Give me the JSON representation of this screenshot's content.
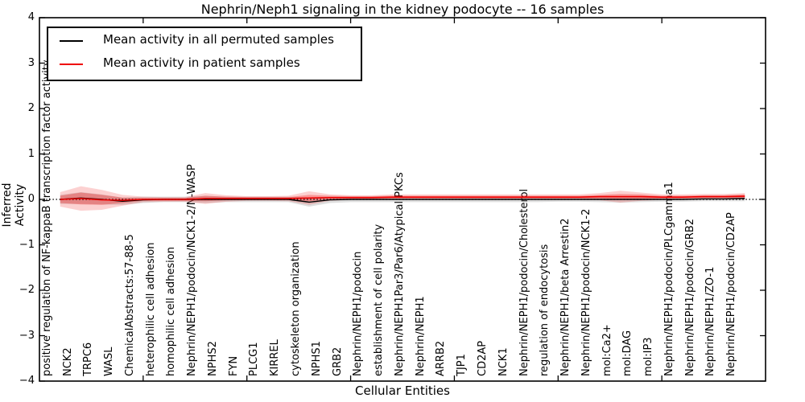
{
  "chart_data": {
    "type": "line",
    "title": "Nephrin/Neph1 signaling in the kidney podocyte -- 16 samples",
    "xlabel": "Cellular Entities",
    "ylabel": "Inferred Activity",
    "ylim": [
      -4,
      4
    ],
    "xlim": [
      0,
      35
    ],
    "grid": false,
    "legend_position": "upper-left",
    "ytick_labels": [
      "4",
      "3",
      "2",
      "1",
      "0",
      "−1",
      "−2",
      "−3",
      "−4"
    ],
    "ytick_values": [
      4,
      3,
      2,
      1,
      0,
      -1,
      -2,
      -3,
      -4
    ],
    "xtick_units": [
      5,
      10,
      15,
      20,
      25,
      30
    ],
    "zero_line": {
      "value": 0,
      "style": "dotted",
      "color": "#000000"
    },
    "categories": [
      "positive regulation of NF-kappaB transcription factor activity",
      "NCK2",
      "TRPC6",
      "WASL",
      "ChemicalAbstracts:57-88-5",
      "heterophilic cell adhesion",
      "homophilic cell adhesion",
      "Nephrin/NEPH1/podocin/NCK1-2/N-WASP",
      "NPHS2",
      "FYN",
      "PLCG1",
      "KIRREL",
      "cytoskeleton organization",
      "NPHS1",
      "GRB2",
      "Nephrin/NEPH1/podocin",
      "establishment of cell polarity",
      "Nephrin/NEPH1Par3/Par6/Atypical PKCs",
      "Nephrin/NEPH1",
      "ARRB2",
      "TJP1",
      "CD2AP",
      "NCK1",
      "Nephrin/NEPH1/podocin/Cholesterol",
      "regulation of endocytosis",
      "Nephrin/NEPH1/beta Arrestin2",
      "Nephrin/NEPH1/podocin/NCK1-2",
      "mol:Ca2+",
      "mol:DAG",
      "mol:IP3",
      "Nephrin/NEPH1/podocin/PLCgamma1",
      "Nephrin/NEPH1/podocin/GRB2",
      "Nephrin/NEPH1/ZO-1",
      "Nephrin/NEPH1/podocin/CD2AP"
    ],
    "series": [
      {
        "name": "Mean activity in all permuted samples",
        "color": "#000000",
        "band_color": "#999999",
        "values": [
          0.0,
          0.03,
          0.0,
          -0.04,
          -0.01,
          0.0,
          0.0,
          0.0,
          0.0,
          0.0,
          0.0,
          0.0,
          -0.06,
          -0.01,
          0.0,
          0.0,
          0.0,
          0.0,
          0.0,
          0.0,
          0.0,
          0.0,
          0.0,
          0.0,
          0.0,
          0.0,
          0.0,
          0.0,
          0.0,
          0.0,
          0.0,
          0.01,
          0.01,
          0.02
        ],
        "band_halfwidth": [
          0.1,
          0.13,
          0.11,
          0.08,
          0.07,
          0.06,
          0.06,
          0.08,
          0.06,
          0.06,
          0.06,
          0.06,
          0.1,
          0.07,
          0.06,
          0.06,
          0.06,
          0.06,
          0.06,
          0.06,
          0.06,
          0.06,
          0.06,
          0.06,
          0.05,
          0.05,
          0.06,
          0.07,
          0.06,
          0.05,
          0.05,
          0.05,
          0.05,
          0.06
        ]
      },
      {
        "name": "Mean activity in patient samples",
        "color": "#ee0000",
        "band_color": "#ee0000",
        "values": [
          0.0,
          0.02,
          -0.01,
          -0.02,
          0.0,
          0.0,
          0.0,
          0.02,
          0.02,
          0.02,
          0.02,
          0.02,
          0.03,
          0.04,
          0.04,
          0.04,
          0.05,
          0.05,
          0.05,
          0.05,
          0.05,
          0.05,
          0.05,
          0.05,
          0.05,
          0.05,
          0.06,
          0.06,
          0.06,
          0.05,
          0.05,
          0.06,
          0.06,
          0.07
        ],
        "band_halfwidth_outer": [
          0.16,
          0.27,
          0.22,
          0.12,
          0.06,
          0.05,
          0.05,
          0.12,
          0.07,
          0.05,
          0.05,
          0.06,
          0.15,
          0.07,
          0.05,
          0.05,
          0.06,
          0.06,
          0.06,
          0.06,
          0.06,
          0.06,
          0.06,
          0.06,
          0.06,
          0.06,
          0.08,
          0.13,
          0.09,
          0.06,
          0.06,
          0.06,
          0.06,
          0.07
        ],
        "band_halfwidth_inner": [
          0.08,
          0.13,
          0.11,
          0.06,
          0.03,
          0.03,
          0.03,
          0.06,
          0.04,
          0.03,
          0.03,
          0.03,
          0.07,
          0.04,
          0.03,
          0.03,
          0.03,
          0.03,
          0.03,
          0.03,
          0.03,
          0.03,
          0.03,
          0.03,
          0.03,
          0.03,
          0.04,
          0.06,
          0.05,
          0.03,
          0.03,
          0.03,
          0.03,
          0.04
        ]
      }
    ]
  }
}
